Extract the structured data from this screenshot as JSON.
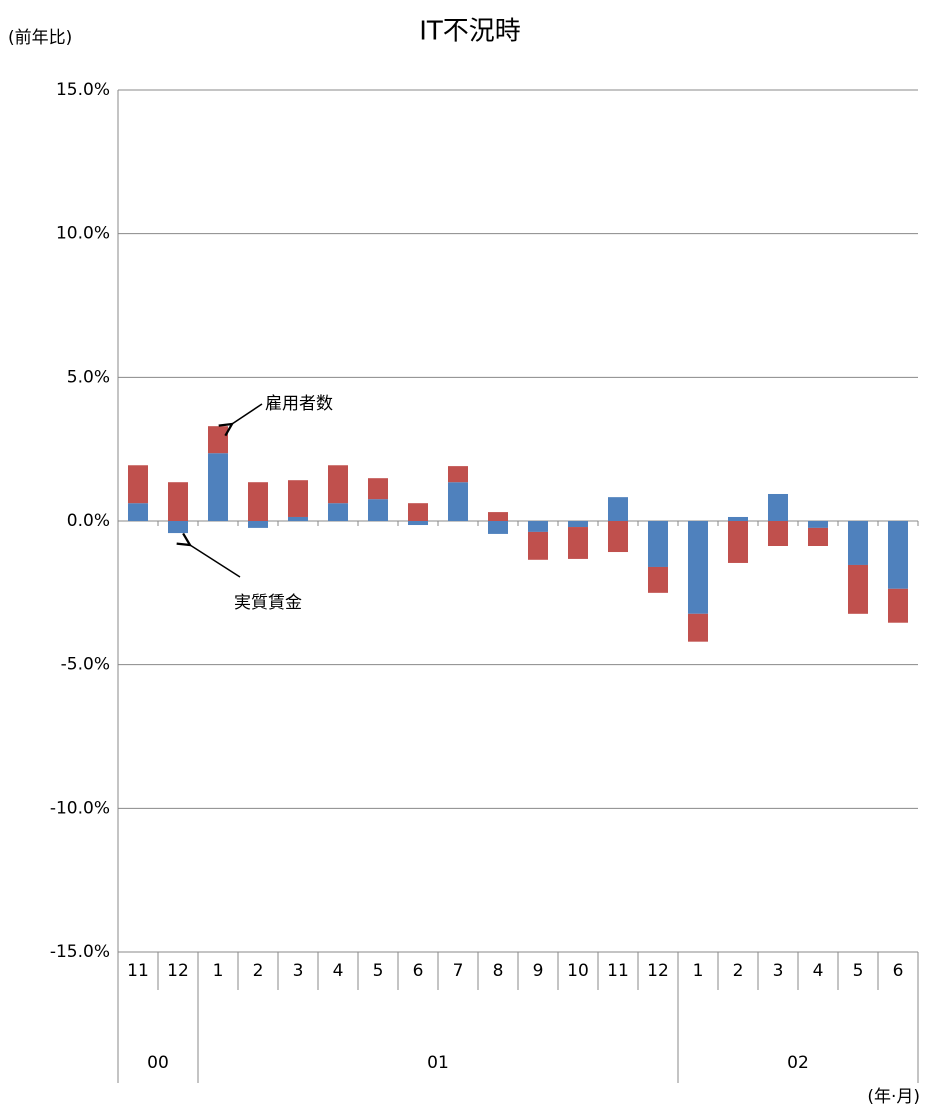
{
  "chart_data": {
    "type": "bar",
    "stacked": true,
    "title": "IT不況時",
    "y_label": "(前年比)",
    "x_label": "(年·月)",
    "categories": [
      "11",
      "12",
      "1",
      "2",
      "3",
      "4",
      "5",
      "6",
      "7",
      "8",
      "9",
      "10",
      "11",
      "12",
      "1",
      "2",
      "3",
      "4",
      "5",
      "6"
    ],
    "groups": [
      {
        "label": "00",
        "size": 2
      },
      {
        "label": "01",
        "size": 12
      },
      {
        "label": "02",
        "size": 6
      }
    ],
    "series": [
      {
        "name": "実質賃金",
        "color": "#4f81bd",
        "values": [
          0.62,
          -0.42,
          2.36,
          -0.24,
          0.14,
          0.62,
          0.76,
          -0.14,
          1.35,
          -0.45,
          -0.38,
          -0.21,
          0.83,
          -1.6,
          -3.23,
          0.14,
          0.94,
          -0.24,
          -1.53,
          -2.36
        ]
      },
      {
        "name": "雇用者数",
        "color": "#c0504d",
        "values": [
          1.32,
          1.35,
          0.94,
          1.35,
          1.28,
          1.32,
          0.73,
          0.62,
          0.56,
          0.31,
          -0.97,
          -1.11,
          -1.08,
          -0.9,
          -0.97,
          -1.46,
          -0.87,
          -0.63,
          -1.7,
          -1.18
        ]
      }
    ],
    "ylim": [
      -15,
      15
    ],
    "yticks": [
      {
        "value": -15,
        "label": "-15.0%"
      },
      {
        "value": -10,
        "label": "-10.0%"
      },
      {
        "value": -5,
        "label": "-5.0%"
      },
      {
        "value": 0,
        "label": "0.0%"
      },
      {
        "value": 5,
        "label": "5.0%"
      },
      {
        "value": 10,
        "label": "10.0%"
      },
      {
        "value": 15,
        "label": "15.0%"
      }
    ],
    "grid": true
  }
}
